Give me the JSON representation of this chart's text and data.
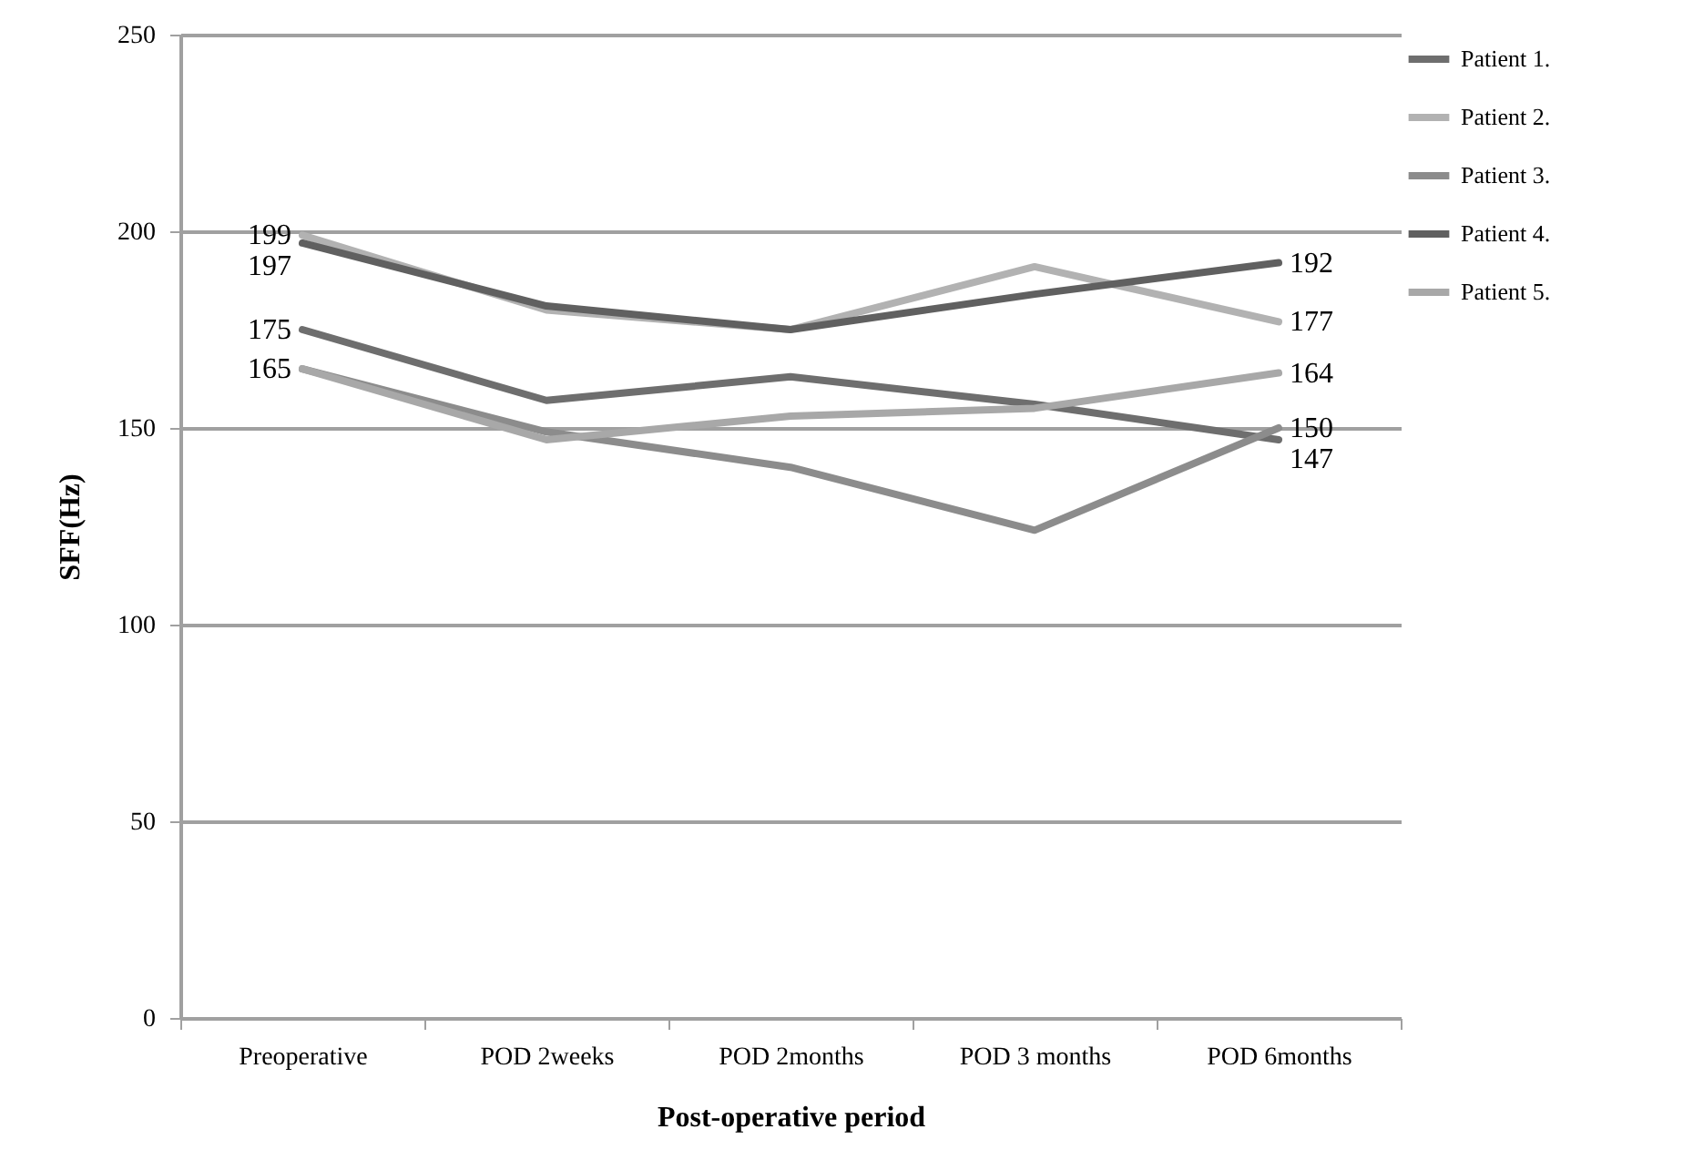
{
  "chart_data": {
    "type": "line",
    "xlabel": "Post-operative period",
    "ylabel": "SFF(Hz)",
    "categories": [
      "Preoperative",
      "POD 2weeks",
      "POD 2months",
      "POD 3 months",
      "POD 6months"
    ],
    "series": [
      {
        "name": "Patient 1.",
        "color": "#6e6e6e",
        "values": [
          175,
          157,
          163,
          156,
          147
        ],
        "value_labels": [
          "175",
          null,
          null,
          null,
          "147"
        ]
      },
      {
        "name": "Patient 2.",
        "color": "#b2b2b2",
        "values": [
          199,
          180,
          175,
          191,
          177
        ],
        "value_labels": [
          "199",
          null,
          null,
          null,
          "177"
        ]
      },
      {
        "name": "Patient 3.",
        "color": "#8c8c8c",
        "values": [
          165,
          149,
          140,
          124,
          150
        ],
        "value_labels": [
          null,
          null,
          null,
          null,
          "150"
        ]
      },
      {
        "name": "Patient 4.",
        "color": "#606060",
        "values": [
          197,
          181,
          175,
          184,
          192
        ],
        "value_labels": [
          "197",
          null,
          null,
          null,
          "192"
        ]
      },
      {
        "name": "Patient 5.",
        "color": "#a8a8a8",
        "values": [
          165,
          147,
          153,
          155,
          164
        ],
        "value_labels": [
          "165",
          null,
          null,
          null,
          "164"
        ]
      }
    ],
    "ylim": [
      0,
      250
    ],
    "yticks": [
      0,
      50,
      100,
      150,
      200,
      250
    ],
    "grid": "y",
    "legend": "right",
    "marker": "none",
    "line_style": "solid"
  }
}
